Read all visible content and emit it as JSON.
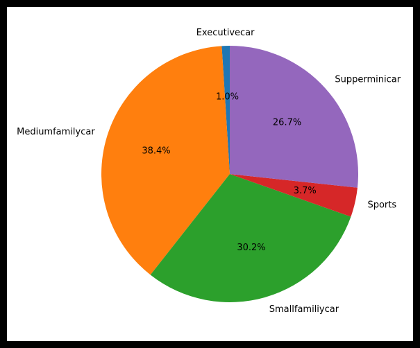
{
  "chart_data": {
    "type": "pie",
    "start_angle_deg": 90,
    "direction": "counterclockwise",
    "slices": [
      {
        "label": "Executivecar",
        "value": 1.0,
        "pct_label": "1.0%",
        "color": "#1f77b4"
      },
      {
        "label": "Mediumfamilycar",
        "value": 38.4,
        "pct_label": "38.4%",
        "color": "#ff7f0e"
      },
      {
        "label": "Smallfamiliycar",
        "value": 30.2,
        "pct_label": "30.2%",
        "color": "#2ca02c"
      },
      {
        "label": "Sports",
        "value": 3.7,
        "pct_label": "3.7%",
        "color": "#d62728"
      },
      {
        "label": "Supperminicar",
        "value": 26.7,
        "pct_label": "26.7%",
        "color": "#9467bd"
      }
    ]
  }
}
